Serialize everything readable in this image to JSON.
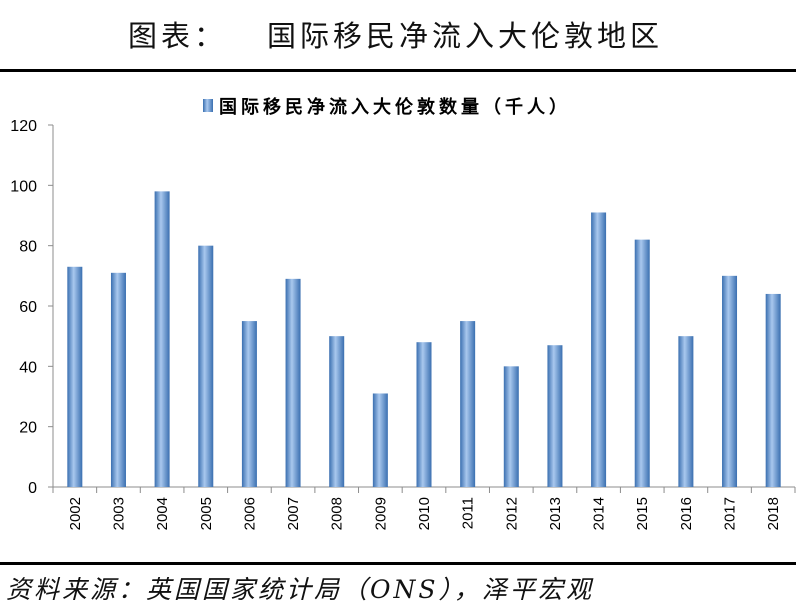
{
  "header": {
    "label": "图表：",
    "title": "国际移民净流入大伦敦地区"
  },
  "chart_data": {
    "type": "bar",
    "categories": [
      "2002",
      "2003",
      "2004",
      "2005",
      "2006",
      "2007",
      "2008",
      "2009",
      "2010",
      "2011",
      "2012",
      "2013",
      "2014",
      "2015",
      "2016",
      "2017",
      "2018"
    ],
    "series": [
      {
        "name": "国际移民净流入大伦敦数量（千人）",
        "values": [
          73,
          71,
          98,
          80,
          55,
          69,
          50,
          31,
          48,
          55,
          40,
          47,
          91,
          82,
          50,
          70,
          64
        ]
      }
    ],
    "ylim": [
      0,
      120
    ],
    "yticks": [
      0,
      20,
      40,
      60,
      80,
      100,
      120
    ],
    "grid": false,
    "legend": "top-center"
  },
  "footer": {
    "source": "资料来源：英国国家统计局（ONS），泽平宏观"
  },
  "colors": {
    "bar_edge": "#3a6fb0",
    "bar_highlight": "#a9c8ee",
    "axis": "#8c8c8c"
  }
}
